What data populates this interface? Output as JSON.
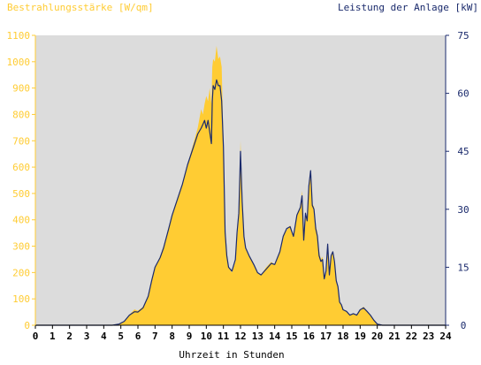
{
  "chart_data": {
    "type": "area",
    "left_axis_label": "Bestrahlungsstärke [W/qm]",
    "right_axis_label": "Leistung der Anlage [kW]",
    "xlabel": "Uhrzeit in Stunden",
    "xlim": [
      0,
      24
    ],
    "ylim_left": [
      0,
      1100
    ],
    "ylim_right": [
      0,
      75
    ],
    "x_ticks": [
      "0",
      "1",
      "2",
      "3",
      "4",
      "5",
      "6",
      "7",
      "8",
      "9",
      "10",
      "11",
      "12",
      "13",
      "14",
      "15",
      "16",
      "17",
      "18",
      "19",
      "20",
      "21",
      "22",
      "23",
      "24"
    ],
    "y_ticks_left": [
      "0",
      "100",
      "200",
      "300",
      "400",
      "500",
      "600",
      "700",
      "800",
      "900",
      "1000",
      "1100"
    ],
    "y_ticks_right": [
      "0",
      "15",
      "30",
      "45",
      "60",
      "75"
    ],
    "grid": false,
    "colors": {
      "irradiance": "#ffcc33",
      "power": "#1a2a6c",
      "left_axis": "#ffcc33",
      "right_axis": "#1a2a6c",
      "plot_background": "#dcdcdc"
    },
    "series": [
      {
        "axis": "left",
        "style": "filled-area",
        "x": [
          0,
          4.5,
          4.9,
          5.2,
          5.5,
          5.8,
          6.0,
          6.3,
          6.6,
          6.8,
          7.0,
          7.3,
          7.5,
          7.8,
          8.0,
          8.3,
          8.6,
          8.9,
          9.2,
          9.5,
          9.7,
          9.8,
          9.9,
          10.0,
          10.1,
          10.2,
          10.3,
          10.35,
          10.4,
          10.5,
          10.6,
          10.7,
          10.8,
          10.9,
          11.0,
          11.1,
          11.2,
          11.3,
          11.5,
          11.7,
          11.8,
          11.9,
          12.0,
          12.1,
          12.2,
          12.3,
          12.5,
          12.8,
          13.0,
          13.2,
          13.5,
          13.8,
          14.0,
          14.3,
          14.5,
          14.7,
          14.9,
          15.1,
          15.3,
          15.5,
          15.6,
          15.7,
          15.8,
          15.9,
          16.0,
          16.1,
          16.2,
          16.3,
          16.4,
          16.5,
          16.6,
          16.7,
          16.8,
          16.9,
          17.0,
          17.1,
          17.2,
          17.3,
          17.4,
          17.5,
          17.6,
          17.7,
          17.8,
          17.9,
          18.0,
          18.2,
          18.4,
          18.6,
          18.8,
          19.0,
          19.2,
          19.4,
          19.6,
          19.8,
          20.0,
          20.3,
          24
        ],
        "y": [
          0,
          0,
          5,
          15,
          40,
          60,
          55,
          70,
          110,
          170,
          220,
          260,
          300,
          370,
          420,
          480,
          540,
          610,
          680,
          750,
          820,
          800,
          840,
          870,
          850,
          900,
          840,
          980,
          1010,
          1000,
          1060,
          1010,
          1020,
          980,
          700,
          380,
          280,
          220,
          200,
          240,
          330,
          400,
          700,
          470,
          340,
          290,
          260,
          230,
          200,
          190,
          220,
          240,
          230,
          280,
          340,
          360,
          380,
          340,
          420,
          450,
          510,
          320,
          430,
          400,
          540,
          560,
          460,
          450,
          380,
          350,
          280,
          250,
          260,
          180,
          210,
          310,
          200,
          260,
          280,
          250,
          170,
          150,
          90,
          80,
          60,
          55,
          40,
          45,
          40,
          60,
          70,
          55,
          40,
          20,
          5,
          0,
          0
        ]
      },
      {
        "axis": "right",
        "style": "line",
        "x": [
          0,
          4.5,
          4.9,
          5.2,
          5.5,
          5.8,
          6.0,
          6.3,
          6.6,
          6.8,
          7.0,
          7.3,
          7.5,
          7.8,
          8.0,
          8.3,
          8.6,
          8.9,
          9.2,
          9.5,
          9.7,
          9.8,
          9.9,
          10.0,
          10.1,
          10.2,
          10.3,
          10.35,
          10.4,
          10.5,
          10.6,
          10.7,
          10.8,
          10.9,
          11.0,
          11.1,
          11.2,
          11.3,
          11.5,
          11.7,
          11.8,
          11.9,
          12.0,
          12.1,
          12.2,
          12.3,
          12.5,
          12.8,
          13.0,
          13.2,
          13.5,
          13.8,
          14.0,
          14.3,
          14.5,
          14.7,
          14.9,
          15.1,
          15.3,
          15.5,
          15.6,
          15.7,
          15.8,
          15.9,
          16.0,
          16.1,
          16.2,
          16.3,
          16.4,
          16.5,
          16.6,
          16.7,
          16.8,
          16.9,
          17.0,
          17.1,
          17.2,
          17.3,
          17.4,
          17.5,
          17.6,
          17.7,
          17.8,
          17.9,
          18.0,
          18.2,
          18.4,
          18.6,
          18.8,
          19.0,
          19.2,
          19.4,
          19.6,
          19.8,
          20.0,
          20.3,
          24
        ],
        "y": [
          0,
          0,
          0.3,
          1,
          2.6,
          3.5,
          3.4,
          4.5,
          7.5,
          11.5,
          15,
          17.5,
          20,
          25,
          28.5,
          32.5,
          36.5,
          41.5,
          45.5,
          49.5,
          51,
          52,
          53,
          51,
          53,
          50,
          47,
          58,
          62,
          61,
          63.5,
          62,
          62,
          58,
          46,
          24,
          18,
          15,
          14,
          17,
          24,
          29,
          45,
          32,
          23,
          20,
          18,
          15.5,
          13.6,
          13,
          14.5,
          16,
          15.7,
          19,
          23,
          25,
          25.5,
          23,
          28.5,
          30.5,
          33.5,
          22,
          29,
          27,
          36,
          40,
          31,
          30,
          25,
          23,
          18,
          16.5,
          17,
          12,
          14,
          21,
          13,
          18,
          19,
          16.5,
          11.5,
          10,
          6,
          5.3,
          4,
          3.6,
          2.6,
          3,
          2.6,
          4,
          4.5,
          3.6,
          2.6,
          1.3,
          0.3,
          0,
          0
        ]
      }
    ]
  }
}
